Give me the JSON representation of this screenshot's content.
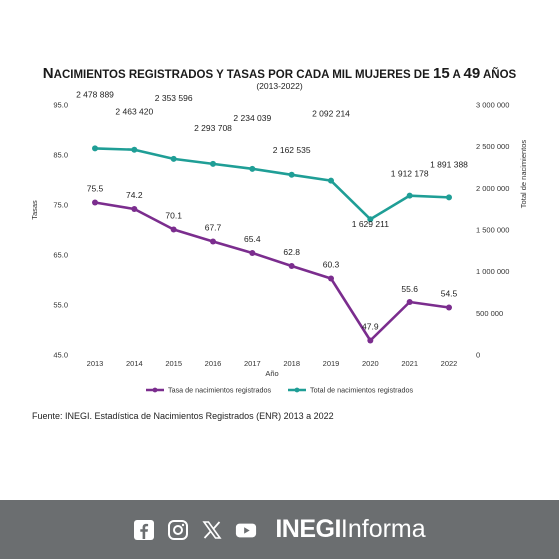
{
  "chart_data": {
    "type": "line",
    "title_parts": [
      "N",
      "ACIMIENTOS REGISTRADOS Y TASAS POR CADA MIL MUJERES DE ",
      "15",
      " A ",
      "49",
      " AÑOS"
    ],
    "subtitle": "(2013-2022)",
    "xlabel": "Año",
    "ylabel_left": "Tasas",
    "ylabel_right": "Total de nacimientos",
    "categories": [
      "2013",
      "2014",
      "2015",
      "2016",
      "2017",
      "2018",
      "2019",
      "2020",
      "2021",
      "2022"
    ],
    "ylim_left": [
      45,
      95
    ],
    "yticks_left": [
      "45.0",
      "55.0",
      "65.0",
      "75.0",
      "85.0",
      "95.0"
    ],
    "ylim_right": [
      0,
      3000000
    ],
    "yticks_right": [
      "0",
      "500 000",
      "1 000 000",
      "1 500 000",
      "2 000 000",
      "2 500 000",
      "3 000 000"
    ],
    "series": [
      {
        "name": "Tasa de nacimientos registrados",
        "axis": "left",
        "color": "#7b2d8e",
        "values": [
          75.5,
          74.2,
          70.1,
          67.7,
          65.4,
          62.8,
          60.3,
          47.9,
          55.6,
          54.5
        ],
        "labels": [
          "75.5",
          "74.2",
          "70.1",
          "67.7",
          "65.4",
          "62.8",
          "60.3",
          "47.9",
          "55.6",
          "54.5"
        ]
      },
      {
        "name": "Total de nacimientos registrados",
        "axis": "right",
        "color": "#1f9e96",
        "values": [
          2478889,
          2463420,
          2353596,
          2293708,
          2234039,
          2162535,
          2092214,
          1629211,
          1912178,
          1891388
        ],
        "labels": [
          "2 478 889",
          "2 463 420",
          "2 353 596",
          "2 293 708",
          "2 234 039",
          "2 162 535",
          "2 092 214",
          "1 629 211",
          "1 912 178",
          "1 891 388"
        ]
      }
    ],
    "grid": false,
    "legend_position": "bottom"
  },
  "source": "Fuente: INEGI. Estadística de Nacimientos Registrados (ENR) 2013 a 2022",
  "footer": {
    "icons": [
      "facebook-icon",
      "instagram-icon",
      "x-icon",
      "youtube-icon"
    ],
    "brand_bold": "INEGI",
    "brand_regular": "Informa",
    "background": "#6b6e70"
  }
}
